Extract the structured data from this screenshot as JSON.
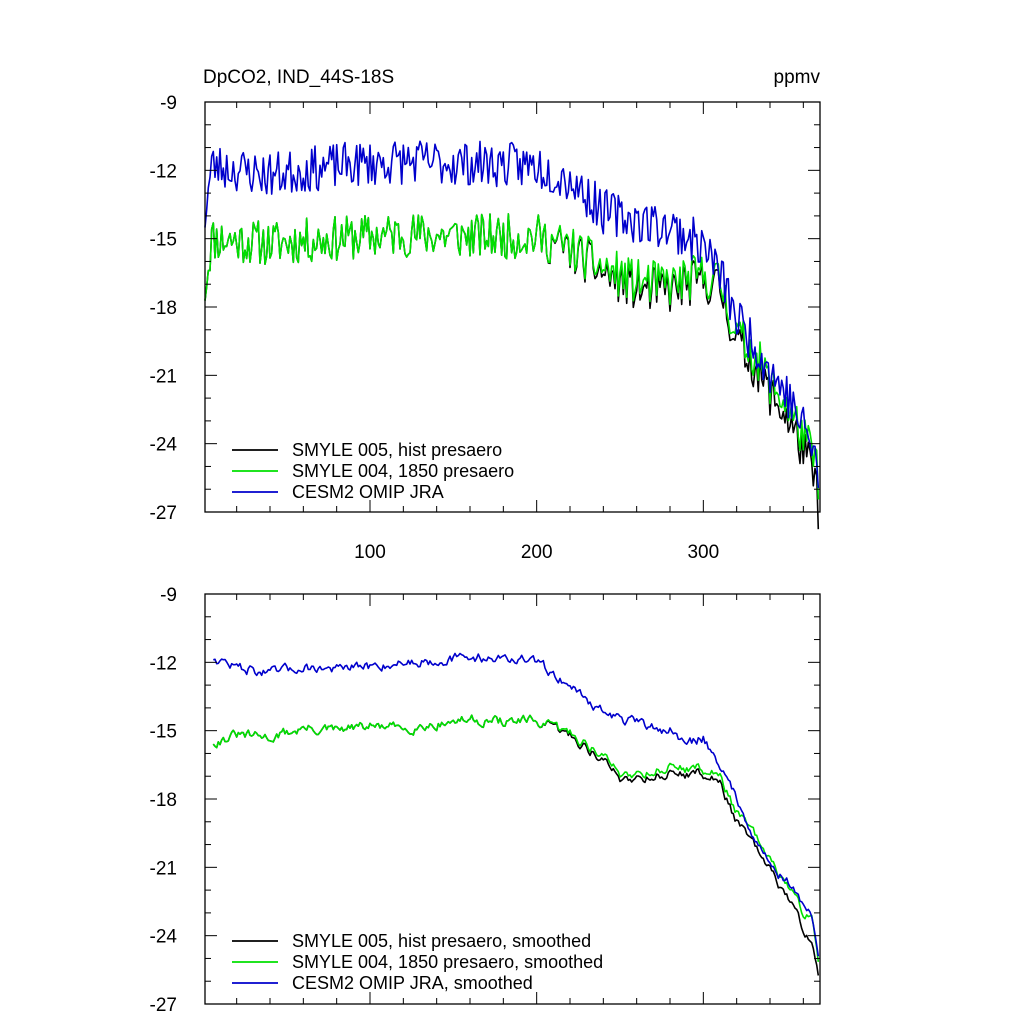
{
  "chart_data": [
    {
      "type": "line",
      "panel": "top",
      "title": "DpCO2, IND_44S-18S",
      "units": "ppmv",
      "xlim": [
        1,
        370
      ],
      "ylim": [
        -27,
        -9
      ],
      "xticks": [
        100,
        200,
        300
      ],
      "xticklabels": [
        "100",
        "200",
        "300"
      ],
      "yticks": [
        -9,
        -12,
        -15,
        -18,
        -21,
        -24,
        -27
      ],
      "yticklabels": [
        "-9",
        "-12",
        "-15",
        "-18",
        "-21",
        "-24",
        "-27"
      ],
      "legend_position": "lower-left",
      "series": [
        {
          "name": "SMYLE 005, hist presaero",
          "color": "#000000",
          "anchors": [
            [
              1,
              -17.2
            ],
            [
              5,
              -15.0
            ],
            [
              40,
              -15.2
            ],
            [
              80,
              -15.0
            ],
            [
              120,
              -14.8
            ],
            [
              160,
              -14.9
            ],
            [
              200,
              -14.9
            ],
            [
              220,
              -15.5
            ],
            [
              240,
              -16.5
            ],
            [
              260,
              -17.2
            ],
            [
              280,
              -17.3
            ],
            [
              300,
              -16.8
            ],
            [
              310,
              -17.2
            ],
            [
              320,
              -19.5
            ],
            [
              330,
              -20.5
            ],
            [
              340,
              -21.8
            ],
            [
              350,
              -22.8
            ],
            [
              360,
              -24.3
            ],
            [
              367,
              -25.6
            ],
            [
              369,
              -26.8
            ]
          ],
          "noise": 1.0,
          "seed": 11
        },
        {
          "name": "SMYLE 004, 1850 presaero",
          "color": "#00e000",
          "anchors": [
            [
              1,
              -17.2
            ],
            [
              5,
              -15.0
            ],
            [
              40,
              -15.2
            ],
            [
              80,
              -15.0
            ],
            [
              120,
              -14.8
            ],
            [
              160,
              -14.9
            ],
            [
              200,
              -14.9
            ],
            [
              220,
              -15.4
            ],
            [
              240,
              -16.3
            ],
            [
              260,
              -16.9
            ],
            [
              280,
              -17.0
            ],
            [
              300,
              -16.6
            ],
            [
              310,
              -16.9
            ],
            [
              320,
              -19.2
            ],
            [
              330,
              -20.0
            ],
            [
              340,
              -21.3
            ],
            [
              350,
              -22.3
            ],
            [
              360,
              -23.7
            ],
            [
              367,
              -24.7
            ],
            [
              369,
              -25.5
            ]
          ],
          "noise": 1.0,
          "seed": 11
        },
        {
          "name": "CESM2 OMIP JRA",
          "color": "#0000cc",
          "anchors": [
            [
              1,
              -14.0
            ],
            [
              5,
              -11.8
            ],
            [
              40,
              -12.2
            ],
            [
              80,
              -11.8
            ],
            [
              120,
              -11.6
            ],
            [
              160,
              -11.7
            ],
            [
              200,
              -11.8
            ],
            [
              220,
              -12.4
            ],
            [
              240,
              -13.8
            ],
            [
              260,
              -14.2
            ],
            [
              280,
              -14.5
            ],
            [
              300,
              -15.3
            ],
            [
              310,
              -16.5
            ],
            [
              320,
              -18.5
            ],
            [
              330,
              -19.5
            ],
            [
              340,
              -20.8
            ],
            [
              350,
              -21.8
            ],
            [
              360,
              -23.3
            ],
            [
              367,
              -24.3
            ],
            [
              369,
              -26.2
            ]
          ],
          "noise": 1.0,
          "seed": 23
        }
      ]
    },
    {
      "type": "line",
      "panel": "bottom",
      "title": "",
      "units": "",
      "xlim": [
        1,
        370
      ],
      "ylim": [
        -27,
        -9
      ],
      "xticks": [
        100,
        200,
        300
      ],
      "yticks": [
        -9,
        -12,
        -15,
        -18,
        -21,
        -24,
        -27
      ],
      "yticklabels": [
        "-9",
        "-12",
        "-15",
        "-18",
        "-21",
        "-24",
        "-27"
      ],
      "legend_position": "lower-left",
      "series": [
        {
          "name": "SMYLE 005, hist presaero, smoothed",
          "color": "#000000",
          "anchors": [
            [
              6,
              -15.5
            ],
            [
              20,
              -15.2
            ],
            [
              40,
              -15.3
            ],
            [
              60,
              -14.9
            ],
            [
              80,
              -15.0
            ],
            [
              100,
              -14.8
            ],
            [
              120,
              -14.9
            ],
            [
              140,
              -14.7
            ],
            [
              160,
              -14.5
            ],
            [
              180,
              -14.6
            ],
            [
              200,
              -14.6
            ],
            [
              220,
              -15.2
            ],
            [
              240,
              -16.3
            ],
            [
              250,
              -17.1
            ],
            [
              270,
              -17.0
            ],
            [
              280,
              -16.9
            ],
            [
              300,
              -16.9
            ],
            [
              310,
              -17.3
            ],
            [
              320,
              -19.0
            ],
            [
              330,
              -20.0
            ],
            [
              340,
              -21.2
            ],
            [
              350,
              -22.2
            ],
            [
              360,
              -23.7
            ],
            [
              365,
              -24.2
            ],
            [
              369,
              -25.6
            ]
          ],
          "noise": 0.45,
          "seed": 31
        },
        {
          "name": "SMYLE 004, 1850 presaero, smoothed",
          "color": "#00e000",
          "anchors": [
            [
              6,
              -15.5
            ],
            [
              20,
              -15.2
            ],
            [
              40,
              -15.3
            ],
            [
              60,
              -14.9
            ],
            [
              80,
              -15.0
            ],
            [
              100,
              -14.8
            ],
            [
              120,
              -14.9
            ],
            [
              140,
              -14.7
            ],
            [
              160,
              -14.5
            ],
            [
              180,
              -14.6
            ],
            [
              200,
              -14.6
            ],
            [
              220,
              -15.1
            ],
            [
              240,
              -16.1
            ],
            [
              250,
              -16.9
            ],
            [
              270,
              -16.8
            ],
            [
              280,
              -16.6
            ],
            [
              300,
              -16.7
            ],
            [
              310,
              -17.0
            ],
            [
              320,
              -18.6
            ],
            [
              330,
              -19.5
            ],
            [
              340,
              -20.8
            ],
            [
              350,
              -21.7
            ],
            [
              360,
              -23.0
            ],
            [
              365,
              -23.0
            ],
            [
              369,
              -25.0
            ]
          ],
          "noise": 0.45,
          "seed": 31
        },
        {
          "name": "CESM2 OMIP JRA, smoothed",
          "color": "#0000cc",
          "anchors": [
            [
              6,
              -11.8
            ],
            [
              20,
              -12.2
            ],
            [
              40,
              -12.5
            ],
            [
              60,
              -12.2
            ],
            [
              80,
              -12.3
            ],
            [
              100,
              -12.2
            ],
            [
              120,
              -12.0
            ],
            [
              140,
              -11.9
            ],
            [
              160,
              -11.8
            ],
            [
              180,
              -11.8
            ],
            [
              200,
              -12.0
            ],
            [
              220,
              -13.0
            ],
            [
              240,
              -14.2
            ],
            [
              260,
              -14.7
            ],
            [
              280,
              -15.0
            ],
            [
              290,
              -15.6
            ],
            [
              300,
              -15.3
            ],
            [
              310,
              -16.5
            ],
            [
              320,
              -18.0
            ],
            [
              330,
              -19.5
            ],
            [
              340,
              -20.9
            ],
            [
              350,
              -21.6
            ],
            [
              360,
              -22.6
            ],
            [
              365,
              -23.2
            ],
            [
              369,
              -25.0
            ]
          ],
          "noise": 0.45,
          "seed": 47
        }
      ]
    }
  ]
}
